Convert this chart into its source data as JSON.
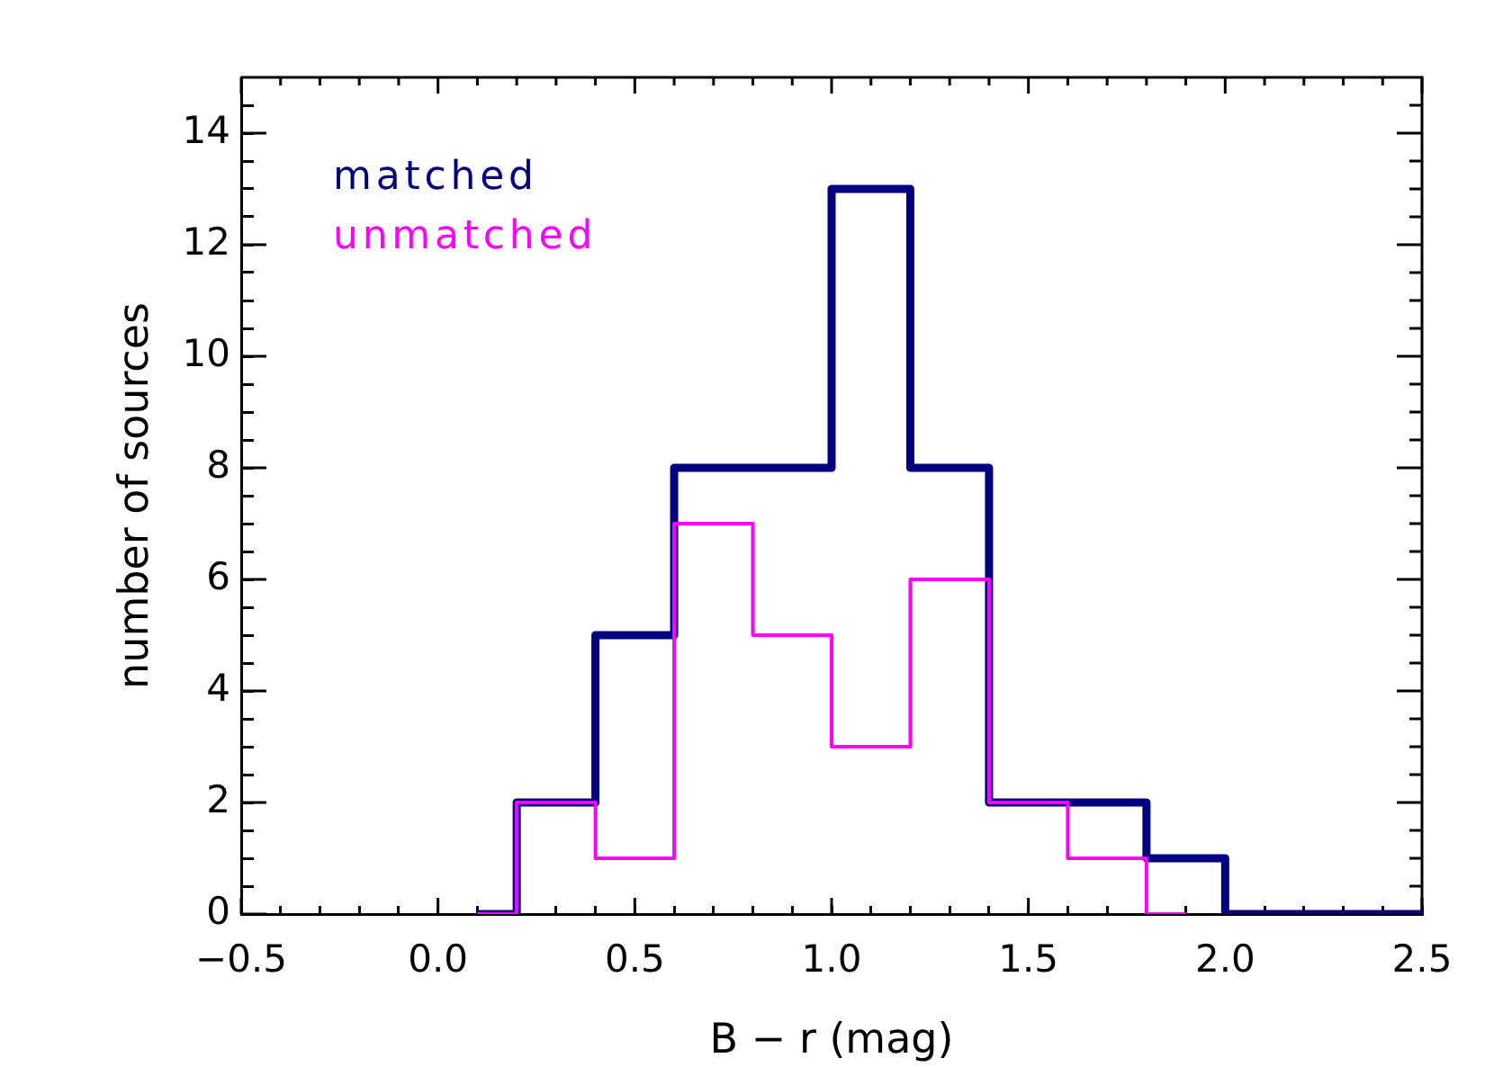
{
  "chart_data": {
    "type": "histogram",
    "xlabel": "B − r (mag)",
    "ylabel": "number of sources",
    "bins": [
      0.1,
      0.2,
      0.4,
      0.6,
      0.8,
      1.0,
      1.2,
      1.4,
      1.6,
      1.8,
      1.9,
      2.0,
      2.5
    ],
    "series": [
      {
        "name": "matched",
        "color": "#000080",
        "values": [
          0,
          2,
          5,
          8,
          8,
          13,
          8,
          2,
          2,
          1,
          1,
          0
        ]
      },
      {
        "name": "unmatched",
        "color": "#ff00ff",
        "bins": [
          0.1,
          0.2,
          0.4,
          0.6,
          0.8,
          1.0,
          1.2,
          1.4,
          1.6,
          1.8,
          1.9
        ],
        "values": [
          0,
          2,
          1,
          7,
          5,
          3,
          6,
          2,
          1,
          0
        ]
      }
    ],
    "xlim": [
      -0.5,
      2.5
    ],
    "ylim": [
      0,
      15
    ],
    "xticks": [
      {
        "value": -0.5,
        "label": "−0.5"
      },
      {
        "value": -0.4,
        "label": null
      },
      {
        "value": -0.3,
        "label": null
      },
      {
        "value": -0.2,
        "label": null
      },
      {
        "value": -0.1,
        "label": null
      },
      {
        "value": 0,
        "label": "0.0"
      },
      {
        "value": 0.1,
        "label": null
      },
      {
        "value": 0.2,
        "label": null
      },
      {
        "value": 0.3,
        "label": null
      },
      {
        "value": 0.4,
        "label": null
      },
      0.5,
      {
        "value": 0.6,
        "label": null
      },
      {
        "value": 0.7,
        "label": null
      },
      {
        "value": 0.8,
        "label": null
      },
      {
        "value": 0.9,
        "label": null
      },
      {
        "value": 1,
        "label": "1.0"
      },
      {
        "value": 1.1,
        "label": null
      },
      {
        "value": 1.2,
        "label": null
      },
      {
        "value": 1.3,
        "label": null
      },
      {
        "value": 1.4,
        "label": null
      },
      1.5,
      {
        "value": 1.6,
        "label": null
      },
      {
        "value": 1.7,
        "label": null
      },
      {
        "value": 1.8,
        "label": null
      },
      {
        "value": 1.9,
        "label": null
      },
      {
        "value": 2,
        "label": "2.0"
      },
      {
        "value": 2.1,
        "label": null
      },
      {
        "value": 2.2,
        "label": null
      },
      {
        "value": 2.3,
        "label": null
      },
      {
        "value": 2.4,
        "label": null
      },
      2.5
    ],
    "yticks": [
      0,
      {
        "value": 0.5,
        "label": null
      },
      {
        "value": 1,
        "label": null
      },
      {
        "value": 1.5,
        "label": null
      },
      2,
      {
        "value": 2.5,
        "label": null
      },
      {
        "value": 3,
        "label": null
      },
      {
        "value": 3.5,
        "label": null
      },
      4,
      {
        "value": 4.5,
        "label": null
      },
      {
        "value": 5,
        "label": null
      },
      {
        "value": 5.5,
        "label": null
      },
      6,
      {
        "value": 6.5,
        "label": null
      },
      {
        "value": 7,
        "label": null
      },
      {
        "value": 7.5,
        "label": null
      },
      8,
      {
        "value": 8.5,
        "label": null
      },
      {
        "value": 9,
        "label": null
      },
      {
        "value": 9.5,
        "label": null
      },
      10,
      {
        "value": 10.5,
        "label": null
      },
      {
        "value": 11,
        "label": null
      },
      {
        "value": 11.5,
        "label": null
      },
      12,
      {
        "value": 12.5,
        "label": null
      },
      {
        "value": 13,
        "label": null
      },
      {
        "value": 13.5,
        "label": null
      },
      14,
      {
        "value": 14.5,
        "label": null
      }
    ]
  }
}
